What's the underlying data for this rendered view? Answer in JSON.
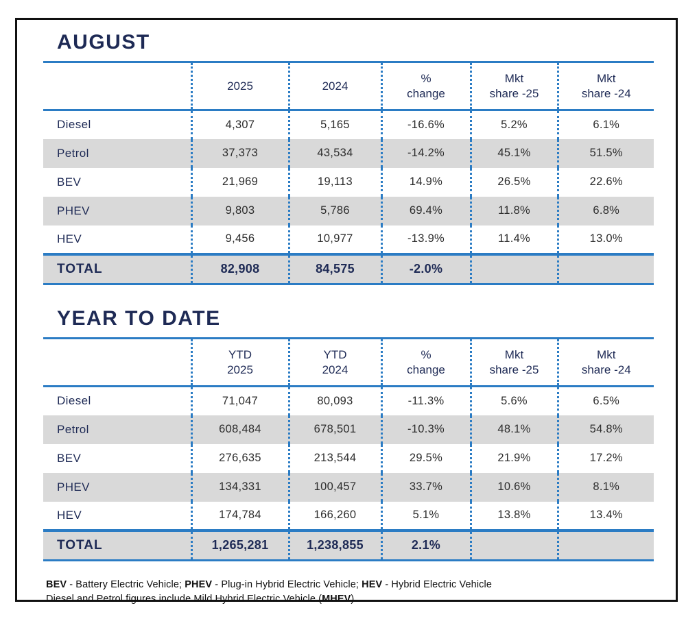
{
  "colors": {
    "navy": "#1e2a55",
    "line_blue": "#2b7cc4",
    "row_gray": "#d9d9d9"
  },
  "august": {
    "title": "AUGUST",
    "columns": [
      {
        "l1": "",
        "l2": ""
      },
      {
        "l1": "2025",
        "l2": ""
      },
      {
        "l1": "2024",
        "l2": ""
      },
      {
        "l1": "%",
        "l2": "change"
      },
      {
        "l1": "Mkt",
        "l2": "share -25"
      },
      {
        "l1": "Mkt",
        "l2": "share -24"
      }
    ],
    "rows": [
      {
        "label": "Diesel",
        "v2025": "4,307",
        "v2024": "5,165",
        "change": "-16.6%",
        "share25": "5.2%",
        "share24": "6.1%"
      },
      {
        "label": "Petrol",
        "v2025": "37,373",
        "v2024": "43,534",
        "change": "-14.2%",
        "share25": "45.1%",
        "share24": "51.5%"
      },
      {
        "label": "BEV",
        "v2025": "21,969",
        "v2024": "19,113",
        "change": "14.9%",
        "share25": "26.5%",
        "share24": "22.6%"
      },
      {
        "label": "PHEV",
        "v2025": "9,803",
        "v2024": "5,786",
        "change": "69.4%",
        "share25": "11.8%",
        "share24": "6.8%"
      },
      {
        "label": "HEV",
        "v2025": "9,456",
        "v2024": "10,977",
        "change": "-13.9%",
        "share25": "11.4%",
        "share24": "13.0%"
      }
    ],
    "total": {
      "label": "TOTAL",
      "v2025": "82,908",
      "v2024": "84,575",
      "change": "-2.0%",
      "share25": "",
      "share24": ""
    }
  },
  "ytd": {
    "title": "YEAR TO DATE",
    "columns": [
      {
        "l1": "",
        "l2": ""
      },
      {
        "l1": "YTD",
        "l2": "2025"
      },
      {
        "l1": "YTD",
        "l2": "2024"
      },
      {
        "l1": "%",
        "l2": "change"
      },
      {
        "l1": "Mkt",
        "l2": "share -25"
      },
      {
        "l1": "Mkt",
        "l2": "share -24"
      }
    ],
    "rows": [
      {
        "label": "Diesel",
        "v2025": "71,047",
        "v2024": "80,093",
        "change": "-11.3%",
        "share25": "5.6%",
        "share24": "6.5%"
      },
      {
        "label": "Petrol",
        "v2025": "608,484",
        "v2024": "678,501",
        "change": "-10.3%",
        "share25": "48.1%",
        "share24": "54.8%"
      },
      {
        "label": "BEV",
        "v2025": "276,635",
        "v2024": "213,544",
        "change": "29.5%",
        "share25": "21.9%",
        "share24": "17.2%"
      },
      {
        "label": "PHEV",
        "v2025": "134,331",
        "v2024": "100,457",
        "change": "33.7%",
        "share25": "10.6%",
        "share24": "8.1%"
      },
      {
        "label": "HEV",
        "v2025": "174,784",
        "v2024": "166,260",
        "change": "5.1%",
        "share25": "13.8%",
        "share24": "13.4%"
      }
    ],
    "total": {
      "label": "TOTAL",
      "v2025": "1,265,281",
      "v2024": "1,238,855",
      "change": "2.1%",
      "share25": "",
      "share24": ""
    }
  },
  "footnote": {
    "seg1b": "BEV",
    "seg1": " - Battery Electric Vehicle; ",
    "seg2b": "PHEV",
    "seg2": " - Plug-in Hybrid Electric Vehicle; ",
    "seg3b": "HEV",
    "seg3": " - Hybrid Electric Vehicle",
    "seg4": "Diesel and Petrol figures include Mild Hybrid Electric Vehicle (",
    "seg4b": "MHEV",
    "seg5": ")"
  }
}
